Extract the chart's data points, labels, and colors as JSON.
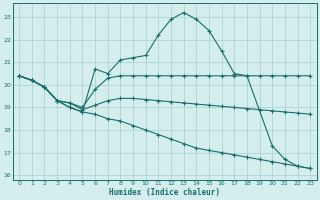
{
  "xlabel": "Humidex (Indice chaleur)",
  "xlim": [
    -0.5,
    23.5
  ],
  "ylim": [
    15.8,
    23.6
  ],
  "yticks": [
    16,
    17,
    18,
    19,
    20,
    21,
    22,
    23
  ],
  "xticks": [
    0,
    1,
    2,
    3,
    4,
    5,
    6,
    7,
    8,
    9,
    10,
    11,
    12,
    13,
    14,
    15,
    16,
    17,
    18,
    19,
    20,
    21,
    22,
    23
  ],
  "bg_color": "#d4eeee",
  "grid_color": "#aed4d4",
  "line_color": "#1a6e6a",
  "figsize": [
    3.2,
    2.0
  ],
  "dpi": 100,
  "lines": [
    {
      "x": [
        0,
        1,
        2,
        3,
        4,
        5,
        6,
        7,
        8,
        9,
        10,
        11,
        12,
        13,
        14,
        15,
        16,
        17,
        18,
        20,
        21,
        22,
        23
      ],
      "y": [
        20.4,
        20.2,
        19.9,
        19.3,
        19.0,
        18.8,
        20.7,
        20.5,
        21.1,
        21.2,
        21.3,
        22.2,
        22.9,
        23.2,
        22.9,
        22.4,
        21.5,
        20.5,
        20.4,
        17.3,
        16.7,
        16.4,
        16.3
      ]
    },
    {
      "x": [
        0,
        1,
        2,
        3,
        4,
        5,
        6,
        7,
        8,
        9,
        10,
        11,
        12,
        13,
        14,
        15,
        16,
        17,
        18,
        19,
        20,
        21,
        22,
        23
      ],
      "y": [
        20.4,
        20.2,
        19.9,
        19.3,
        19.2,
        19.0,
        19.8,
        20.3,
        20.4,
        20.4,
        20.4,
        20.4,
        20.4,
        20.4,
        20.4,
        20.4,
        20.4,
        20.4,
        20.4,
        20.4,
        20.4,
        20.4,
        20.4,
        20.4
      ]
    },
    {
      "x": [
        0,
        1,
        2,
        3,
        4,
        5,
        6,
        7,
        8,
        9,
        10,
        11,
        12,
        13,
        14,
        15,
        16,
        17,
        18,
        19,
        20,
        21,
        22,
        23
      ],
      "y": [
        20.4,
        20.2,
        19.9,
        19.3,
        19.2,
        18.9,
        19.1,
        19.3,
        19.4,
        19.4,
        19.35,
        19.3,
        19.25,
        19.2,
        19.15,
        19.1,
        19.05,
        19.0,
        18.95,
        18.9,
        18.85,
        18.8,
        18.75,
        18.7
      ]
    },
    {
      "x": [
        0,
        1,
        2,
        3,
        4,
        5,
        6,
        7,
        8,
        9,
        10,
        11,
        12,
        13,
        14,
        15,
        16,
        17,
        18,
        19,
        20,
        21,
        22,
        23
      ],
      "y": [
        20.4,
        20.2,
        19.9,
        19.3,
        19.0,
        18.8,
        18.7,
        18.5,
        18.4,
        18.2,
        18.0,
        17.8,
        17.6,
        17.4,
        17.2,
        17.1,
        17.0,
        16.9,
        16.8,
        16.7,
        16.6,
        16.5,
        16.4,
        16.3
      ]
    }
  ]
}
